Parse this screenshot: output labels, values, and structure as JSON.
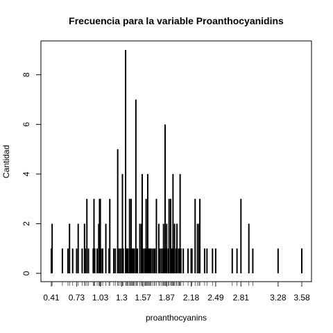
{
  "chart_data": {
    "type": "bar",
    "title": "Frecuencia para la variable Proanthocyanidins",
    "xlabel": "proanthocyanins",
    "ylabel": "Cantidad",
    "xlim": [
      0.41,
      3.58
    ],
    "ylim": [
      0,
      9
    ],
    "grid": false,
    "legend": "none",
    "x_ticks": [
      0.41,
      0.73,
      1.03,
      1.3,
      1.57,
      1.87,
      2.18,
      2.49,
      2.81,
      3.28,
      3.58
    ],
    "y_ticks": [
      0,
      2,
      4,
      6,
      8
    ],
    "points": [
      {
        "x": 0.41,
        "y": 1
      },
      {
        "x": 0.42,
        "y": 2
      },
      {
        "x": 0.55,
        "y": 1
      },
      {
        "x": 0.62,
        "y": 1
      },
      {
        "x": 0.64,
        "y": 2
      },
      {
        "x": 0.68,
        "y": 1
      },
      {
        "x": 0.73,
        "y": 1
      },
      {
        "x": 0.75,
        "y": 2
      },
      {
        "x": 0.8,
        "y": 1
      },
      {
        "x": 0.83,
        "y": 2
      },
      {
        "x": 0.84,
        "y": 1
      },
      {
        "x": 0.86,
        "y": 3
      },
      {
        "x": 0.88,
        "y": 1
      },
      {
        "x": 0.94,
        "y": 1
      },
      {
        "x": 0.95,
        "y": 3
      },
      {
        "x": 0.96,
        "y": 1
      },
      {
        "x": 0.99,
        "y": 1
      },
      {
        "x": 1.01,
        "y": 2
      },
      {
        "x": 1.02,
        "y": 3
      },
      {
        "x": 1.03,
        "y": 3
      },
      {
        "x": 1.04,
        "y": 1
      },
      {
        "x": 1.06,
        "y": 1
      },
      {
        "x": 1.1,
        "y": 2
      },
      {
        "x": 1.14,
        "y": 1
      },
      {
        "x": 1.15,
        "y": 3
      },
      {
        "x": 1.2,
        "y": 1
      },
      {
        "x": 1.22,
        "y": 1
      },
      {
        "x": 1.25,
        "y": 5
      },
      {
        "x": 1.26,
        "y": 1
      },
      {
        "x": 1.28,
        "y": 1
      },
      {
        "x": 1.3,
        "y": 1
      },
      {
        "x": 1.31,
        "y": 4
      },
      {
        "x": 1.32,
        "y": 1
      },
      {
        "x": 1.35,
        "y": 9
      },
      {
        "x": 1.36,
        "y": 1
      },
      {
        "x": 1.37,
        "y": 1
      },
      {
        "x": 1.38,
        "y": 1
      },
      {
        "x": 1.4,
        "y": 3
      },
      {
        "x": 1.41,
        "y": 1
      },
      {
        "x": 1.42,
        "y": 3
      },
      {
        "x": 1.43,
        "y": 1
      },
      {
        "x": 1.44,
        "y": 1
      },
      {
        "x": 1.45,
        "y": 1
      },
      {
        "x": 1.46,
        "y": 1
      },
      {
        "x": 1.48,
        "y": 7
      },
      {
        "x": 1.49,
        "y": 1
      },
      {
        "x": 1.5,
        "y": 1
      },
      {
        "x": 1.53,
        "y": 2
      },
      {
        "x": 1.55,
        "y": 2
      },
      {
        "x": 1.56,
        "y": 4
      },
      {
        "x": 1.57,
        "y": 1
      },
      {
        "x": 1.59,
        "y": 1
      },
      {
        "x": 1.6,
        "y": 1
      },
      {
        "x": 1.61,
        "y": 3
      },
      {
        "x": 1.62,
        "y": 1
      },
      {
        "x": 1.63,
        "y": 4
      },
      {
        "x": 1.64,
        "y": 1
      },
      {
        "x": 1.65,
        "y": 1
      },
      {
        "x": 1.66,
        "y": 1
      },
      {
        "x": 1.67,
        "y": 1
      },
      {
        "x": 1.69,
        "y": 1
      },
      {
        "x": 1.71,
        "y": 1
      },
      {
        "x": 1.72,
        "y": 1
      },
      {
        "x": 1.74,
        "y": 3
      },
      {
        "x": 1.77,
        "y": 2
      },
      {
        "x": 1.78,
        "y": 1
      },
      {
        "x": 1.8,
        "y": 1
      },
      {
        "x": 1.82,
        "y": 1
      },
      {
        "x": 1.83,
        "y": 2
      },
      {
        "x": 1.84,
        "y": 1
      },
      {
        "x": 1.85,
        "y": 6
      },
      {
        "x": 1.86,
        "y": 1
      },
      {
        "x": 1.87,
        "y": 2
      },
      {
        "x": 1.89,
        "y": 1
      },
      {
        "x": 1.9,
        "y": 3
      },
      {
        "x": 1.92,
        "y": 3
      },
      {
        "x": 1.93,
        "y": 1
      },
      {
        "x": 1.94,
        "y": 1
      },
      {
        "x": 1.95,
        "y": 4
      },
      {
        "x": 1.96,
        "y": 1
      },
      {
        "x": 1.97,
        "y": 2
      },
      {
        "x": 1.99,
        "y": 1
      },
      {
        "x": 2.0,
        "y": 2
      },
      {
        "x": 2.02,
        "y": 1
      },
      {
        "x": 2.03,
        "y": 1
      },
      {
        "x": 2.04,
        "y": 4
      },
      {
        "x": 2.05,
        "y": 1
      },
      {
        "x": 2.08,
        "y": 1
      },
      {
        "x": 2.14,
        "y": 1
      },
      {
        "x": 2.18,
        "y": 1
      },
      {
        "x": 2.19,
        "y": 1
      },
      {
        "x": 2.23,
        "y": 3
      },
      {
        "x": 2.26,
        "y": 2
      },
      {
        "x": 2.28,
        "y": 2
      },
      {
        "x": 2.29,
        "y": 3
      },
      {
        "x": 2.35,
        "y": 1
      },
      {
        "x": 2.38,
        "y": 1
      },
      {
        "x": 2.45,
        "y": 1
      },
      {
        "x": 2.49,
        "y": 1
      },
      {
        "x": 2.7,
        "y": 1
      },
      {
        "x": 2.76,
        "y": 1
      },
      {
        "x": 2.81,
        "y": 3
      },
      {
        "x": 2.91,
        "y": 2
      },
      {
        "x": 2.96,
        "y": 1
      },
      {
        "x": 3.28,
        "y": 1
      },
      {
        "x": 3.58,
        "y": 1
      }
    ]
  }
}
